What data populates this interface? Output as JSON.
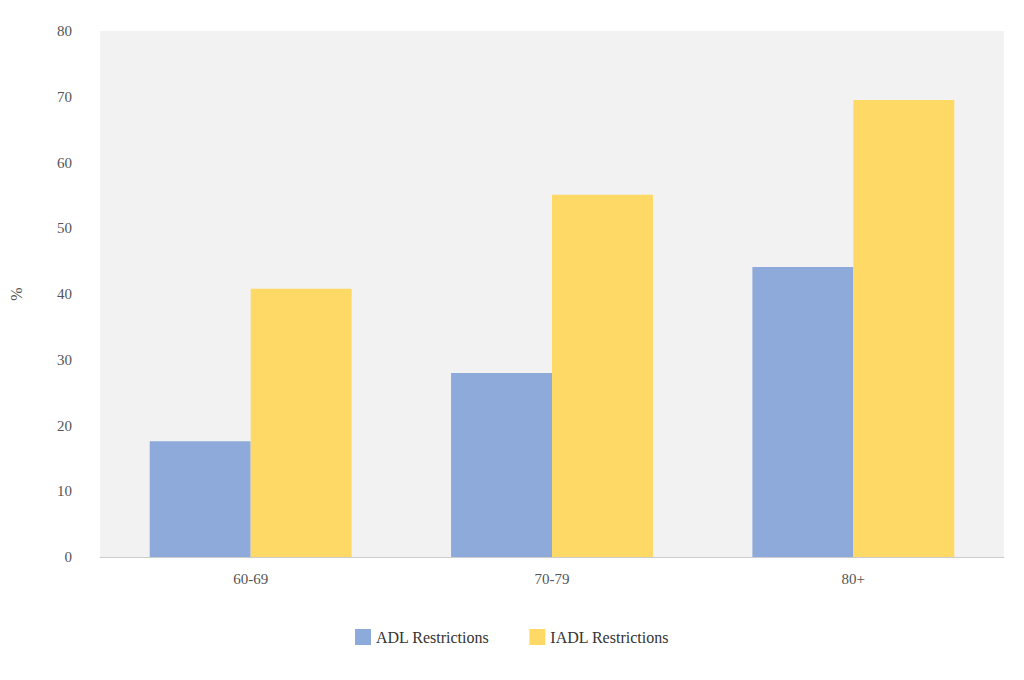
{
  "chart_data": {
    "type": "bar",
    "y_label": "%",
    "categories": [
      "60-69",
      "70-79",
      "80+"
    ],
    "series": [
      {
        "name": "ADL Restrictions",
        "color": "#8eaadb",
        "values": [
          17.6,
          28.0,
          44.1
        ]
      },
      {
        "name": "IADL Restrictions",
        "color": "#ffd966",
        "values": [
          40.8,
          55.1,
          69.5
        ]
      }
    ],
    "ylim": [
      0,
      80
    ],
    "yticks": [
      0,
      10,
      20,
      30,
      40,
      50,
      60,
      70,
      80
    ],
    "grid": false,
    "legend": "bottom"
  }
}
